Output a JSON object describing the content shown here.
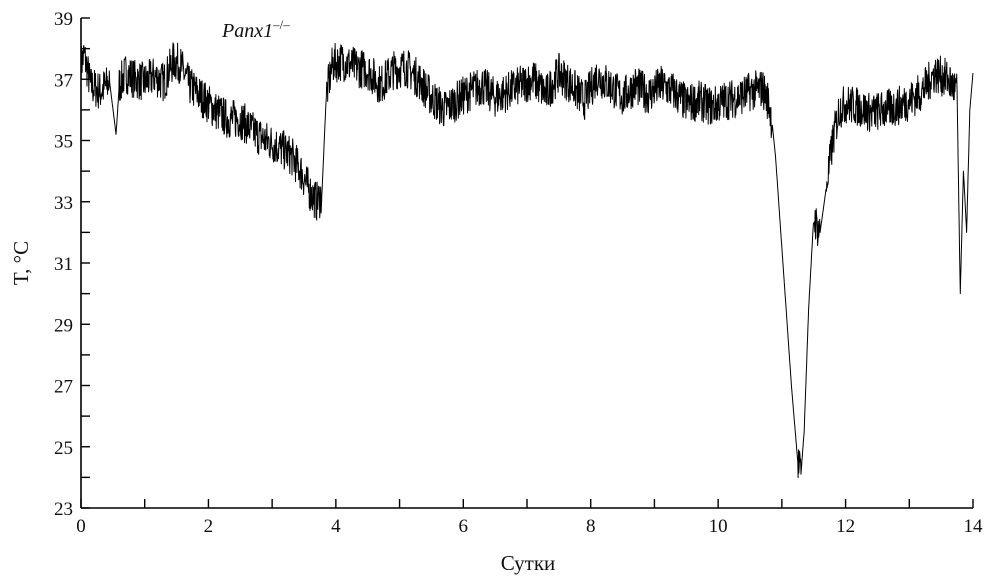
{
  "chart_data": {
    "type": "line",
    "title": "",
    "xlabel": "Сутки",
    "ylabel": "T, °C",
    "annotation": {
      "text": "Panx1",
      "superscript": "–/–"
    },
    "xlim": [
      0,
      14
    ],
    "ylim": [
      23,
      39
    ],
    "x_ticks": [
      "0",
      "2",
      "4",
      "6",
      "8",
      "10",
      "12",
      "14"
    ],
    "y_ticks": [
      "23",
      "25",
      "27",
      "29",
      "31",
      "33",
      "35",
      "37",
      "39"
    ],
    "grid": false,
    "series": [
      {
        "x": [
          0,
          0.05,
          0.15,
          0.3,
          0.45,
          0.55,
          0.6,
          0.7,
          0.85,
          1.0,
          1.15,
          1.3,
          1.45,
          1.55,
          1.7,
          1.9,
          2.1,
          2.3,
          2.5,
          2.7,
          2.9,
          3.1,
          3.3,
          3.45,
          3.6,
          3.7,
          3.78,
          3.85,
          3.95,
          4.1,
          4.3,
          4.5,
          4.7,
          4.9,
          5.1,
          5.3,
          5.5,
          5.7,
          5.9,
          6.1,
          6.3,
          6.5,
          6.7,
          6.9,
          7.1,
          7.3,
          7.5,
          7.7,
          7.9,
          8.1,
          8.3,
          8.5,
          8.7,
          8.9,
          9.1,
          9.3,
          9.5,
          9.7,
          9.9,
          10.1,
          10.3,
          10.5,
          10.7,
          10.8,
          10.85,
          10.9,
          10.95,
          11.05,
          11.15,
          11.25,
          11.3,
          11.35,
          11.42,
          11.5,
          11.55,
          11.6,
          11.7,
          11.8,
          11.9,
          12.0,
          12.2,
          12.4,
          12.6,
          12.8,
          13.0,
          13.2,
          13.4,
          13.6,
          13.75,
          13.8,
          13.85,
          13.9,
          13.95,
          14.0
        ],
        "y": [
          37.5,
          37.8,
          36.8,
          36.6,
          36.9,
          35.2,
          36.8,
          37.2,
          37.0,
          36.9,
          37.1,
          36.9,
          37.6,
          37.5,
          36.8,
          36.4,
          36.0,
          35.7,
          35.7,
          35.3,
          35.0,
          34.8,
          34.5,
          34.0,
          33.3,
          33.0,
          33.2,
          36.5,
          37.5,
          37.6,
          37.4,
          37.3,
          36.8,
          37.3,
          37.4,
          37.0,
          36.4,
          36.0,
          36.3,
          36.6,
          36.8,
          36.4,
          36.6,
          36.8,
          37.0,
          36.5,
          37.2,
          36.8,
          36.3,
          37.1,
          36.8,
          36.4,
          36.8,
          36.5,
          36.8,
          36.6,
          36.2,
          36.3,
          36.1,
          36.3,
          36.4,
          36.6,
          36.7,
          36.2,
          35.5,
          34.5,
          33.0,
          30.0,
          27.0,
          24.5,
          24.1,
          25.5,
          29.5,
          32.5,
          32.2,
          32.0,
          33.5,
          35.0,
          36.0,
          36.2,
          36.1,
          35.9,
          36.0,
          36.1,
          36.3,
          36.6,
          37.2,
          37.0,
          36.6,
          30.0,
          34.0,
          32.0,
          36.0,
          37.2
        ]
      }
    ]
  }
}
